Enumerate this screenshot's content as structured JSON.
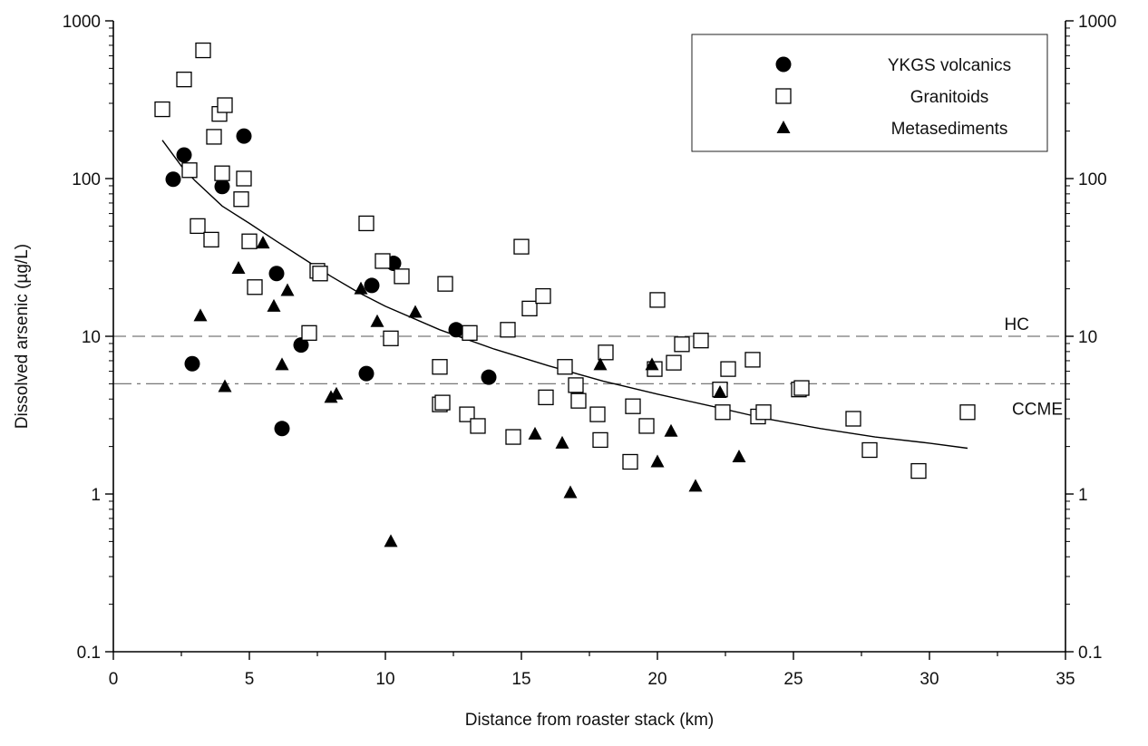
{
  "chart_data": {
    "type": "scatter",
    "title": "",
    "xlabel": "Distance from roaster stack (km)",
    "ylabel": "Dissolved arsenic (µg/L)",
    "xlim": [
      0,
      35
    ],
    "ylim": [
      0.1,
      1000
    ],
    "yscale": "log",
    "x_ticks": [
      0,
      5,
      10,
      15,
      20,
      25,
      30,
      35
    ],
    "y_ticks": [
      0.1,
      1,
      10,
      100,
      1000
    ],
    "y_tick_labels": [
      "0.1",
      "1",
      "10",
      "100",
      "1000"
    ],
    "right_axis_mirrored": true,
    "grid": false,
    "legend_position": "top-right",
    "series": [
      {
        "name": "YKGS volcanics",
        "marker": "filled-circle",
        "points": [
          [
            2.2,
            99
          ],
          [
            2.6,
            141
          ],
          [
            2.9,
            6.7
          ],
          [
            4.0,
            89
          ],
          [
            4.8,
            186
          ],
          [
            6.0,
            25
          ],
          [
            6.2,
            2.6
          ],
          [
            6.9,
            8.8
          ],
          [
            9.3,
            5.8
          ],
          [
            9.5,
            21
          ],
          [
            10.3,
            29
          ],
          [
            12.6,
            11
          ],
          [
            13.8,
            5.5
          ]
        ]
      },
      {
        "name": "Granitoids",
        "marker": "open-square",
        "points": [
          [
            1.8,
            275
          ],
          [
            2.6,
            425
          ],
          [
            2.8,
            113
          ],
          [
            3.1,
            50
          ],
          [
            3.3,
            650
          ],
          [
            3.6,
            41
          ],
          [
            3.7,
            184
          ],
          [
            3.9,
            257
          ],
          [
            4.0,
            108
          ],
          [
            4.1,
            292
          ],
          [
            4.7,
            74
          ],
          [
            4.8,
            100
          ],
          [
            5.0,
            40
          ],
          [
            5.2,
            20.5
          ],
          [
            7.2,
            10.5
          ],
          [
            7.5,
            26
          ],
          [
            7.6,
            25
          ],
          [
            9.3,
            52
          ],
          [
            9.9,
            30
          ],
          [
            10.2,
            9.7
          ],
          [
            10.6,
            24
          ],
          [
            12.0,
            6.4
          ],
          [
            12.0,
            3.7
          ],
          [
            12.1,
            3.8
          ],
          [
            12.2,
            21.5
          ],
          [
            13.0,
            3.2
          ],
          [
            13.1,
            10.5
          ],
          [
            13.4,
            2.7
          ],
          [
            14.5,
            11
          ],
          [
            14.7,
            2.3
          ],
          [
            15.0,
            37
          ],
          [
            15.3,
            15
          ],
          [
            15.8,
            18
          ],
          [
            15.9,
            4.1
          ],
          [
            16.6,
            6.4
          ],
          [
            17.0,
            4.9
          ],
          [
            17.1,
            3.9
          ],
          [
            17.8,
            3.2
          ],
          [
            17.9,
            2.2
          ],
          [
            18.1,
            7.9
          ],
          [
            19.0,
            1.6
          ],
          [
            19.1,
            3.6
          ],
          [
            19.6,
            2.7
          ],
          [
            19.9,
            6.2
          ],
          [
            20.0,
            17
          ],
          [
            20.6,
            6.8
          ],
          [
            20.9,
            8.9
          ],
          [
            21.6,
            9.4
          ],
          [
            22.3,
            4.6
          ],
          [
            22.4,
            3.3
          ],
          [
            22.6,
            6.2
          ],
          [
            23.5,
            7.1
          ],
          [
            23.7,
            3.1
          ],
          [
            23.9,
            3.3
          ],
          [
            25.2,
            4.6
          ],
          [
            25.3,
            4.7
          ],
          [
            27.2,
            3.0
          ],
          [
            27.8,
            1.9
          ],
          [
            29.6,
            1.4
          ],
          [
            31.4,
            3.3
          ]
        ]
      },
      {
        "name": "Metasediments",
        "marker": "filled-triangle",
        "points": [
          [
            3.2,
            13.5
          ],
          [
            4.1,
            4.8
          ],
          [
            4.6,
            27
          ],
          [
            5.5,
            39
          ],
          [
            5.9,
            15.5
          ],
          [
            6.2,
            6.6
          ],
          [
            6.4,
            19.5
          ],
          [
            8.0,
            4.1
          ],
          [
            8.2,
            4.3
          ],
          [
            9.1,
            20
          ],
          [
            9.7,
            12.4
          ],
          [
            10.2,
            0.5
          ],
          [
            11.1,
            14.2
          ],
          [
            15.5,
            2.4
          ],
          [
            16.5,
            2.1
          ],
          [
            16.8,
            1.02
          ],
          [
            17.9,
            6.6
          ],
          [
            19.8,
            6.6
          ],
          [
            20.0,
            1.6
          ],
          [
            20.5,
            2.5
          ],
          [
            21.4,
            1.12
          ],
          [
            22.3,
            4.4
          ],
          [
            23.0,
            1.72
          ]
        ]
      }
    ],
    "fit_curve": {
      "name": "",
      "x_range": [
        1.8,
        31.4
      ],
      "points": [
        [
          1.8,
          175
        ],
        [
          2.5,
          120
        ],
        [
          3.0,
          97
        ],
        [
          4.0,
          67
        ],
        [
          5.0,
          52
        ],
        [
          6.0,
          40
        ],
        [
          7.0,
          31
        ],
        [
          8.0,
          24
        ],
        [
          9.0,
          19
        ],
        [
          10.0,
          15.5
        ],
        [
          12.0,
          11
        ],
        [
          14.0,
          8.3
        ],
        [
          16.0,
          6.5
        ],
        [
          18.0,
          5.2
        ],
        [
          20.0,
          4.3
        ],
        [
          22.0,
          3.6
        ],
        [
          24.0,
          3.0
        ],
        [
          26.0,
          2.6
        ],
        [
          28.0,
          2.3
        ],
        [
          30.0,
          2.1
        ],
        [
          31.4,
          1.95
        ]
      ]
    },
    "reference_lines": [
      {
        "label": "HC",
        "value": 10,
        "style": "dashed"
      },
      {
        "label": "CCME",
        "value": 5,
        "style": "dash-dot"
      }
    ]
  }
}
